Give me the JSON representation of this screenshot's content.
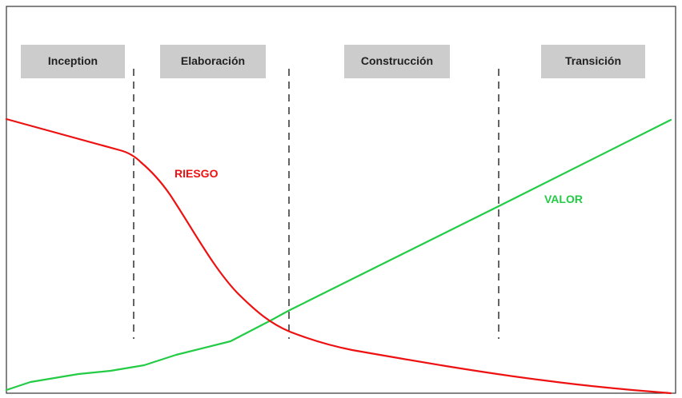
{
  "phases": [
    {
      "label": "Inception"
    },
    {
      "label": "Elaboración"
    },
    {
      "label": "Construcción"
    },
    {
      "label": "Transición"
    }
  ],
  "curves": {
    "riesgo": {
      "label": "RIESGO",
      "color": "#ee1111"
    },
    "valor": {
      "label": "VALOR",
      "color": "#22cc44"
    }
  },
  "colors": {
    "frame": "#333333",
    "phase_box": "#cccccc",
    "divider": "#111111"
  }
}
